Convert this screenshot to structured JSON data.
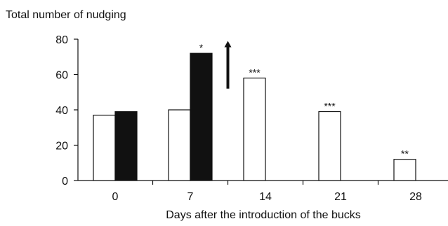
{
  "chart_data": {
    "type": "bar",
    "ylabel": "Total number of nudging",
    "xlabel": "Days after the introduction of the bucks",
    "categories": [
      "0",
      "7",
      "14",
      "21",
      "28"
    ],
    "ylim": [
      0,
      80
    ],
    "yticks": [
      0,
      20,
      40,
      60,
      80
    ],
    "series": [
      {
        "fill": "#ffffff",
        "values": [
          37,
          40,
          58,
          39,
          12
        ]
      },
      {
        "fill": "#111111",
        "values": [
          39,
          72,
          null,
          null,
          null
        ]
      }
    ],
    "annotations": [
      {
        "category": "7",
        "series": 1,
        "text": "*"
      },
      {
        "category": "14",
        "series": 0,
        "text": "***"
      },
      {
        "category": "21",
        "series": 0,
        "text": "***"
      },
      {
        "category": "28",
        "series": 0,
        "text": "**"
      }
    ],
    "arrow": {
      "between": [
        "7",
        "14"
      ],
      "direction": "up",
      "from_value": 52,
      "to_value": 79
    },
    "grid": false,
    "legend": "none"
  }
}
